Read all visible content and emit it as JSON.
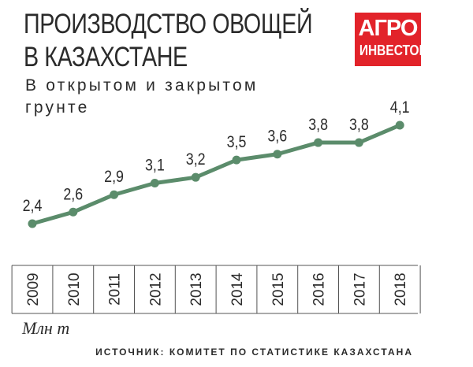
{
  "header": {
    "title_line1": "ПРОИЗВОДСТВО ОВОЩЕЙ",
    "title_line2": "В КАЗАХСТАНЕ",
    "subtitle": "В открытом и закрытом грунте"
  },
  "logo": {
    "line1": "АГРО",
    "line2": "ИНВЕСТОР"
  },
  "unit_label": "Млн т",
  "source": "ИСТОЧНИК: КОМИТЕТ ПО СТАТИСТИКЕ КАЗАХСТАНА",
  "colors": {
    "line": "#5b8c6b",
    "logo_bg": "#e2232a",
    "text": "#2b2b2b"
  },
  "chart_data": {
    "type": "line",
    "title": "ПРОИЗВОДСТВО ОВОЩЕЙ В КАЗАХСТАНЕ",
    "subtitle": "В открытом и закрытом грунте",
    "categories": [
      "2009",
      "2010",
      "2011",
      "2012",
      "2013",
      "2014",
      "2015",
      "2016",
      "2017",
      "2018"
    ],
    "values": [
      2.4,
      2.6,
      2.9,
      3.1,
      3.2,
      3.5,
      3.6,
      3.8,
      3.8,
      4.1
    ],
    "value_labels": [
      "2,4",
      "2,6",
      "2,9",
      "3,1",
      "3,2",
      "3,5",
      "3,6",
      "3,8",
      "3,8",
      "4,1"
    ],
    "ylabel": "Млн т",
    "xlabel": "",
    "grid": false,
    "legend": "none"
  }
}
